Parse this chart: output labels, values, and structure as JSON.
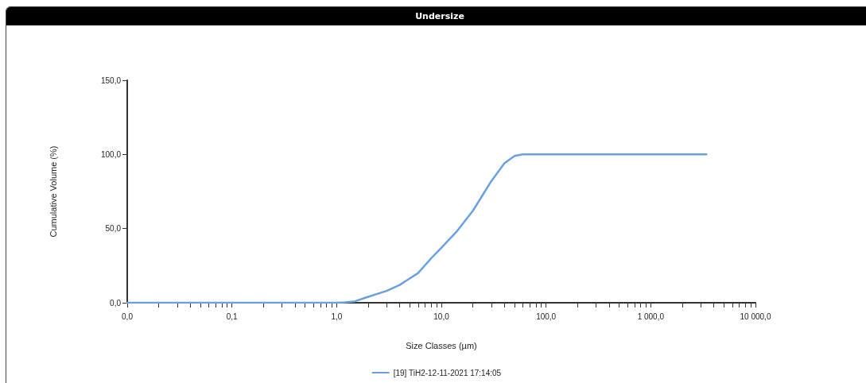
{
  "chart_data": {
    "type": "line",
    "title": "Undersize",
    "xlabel": "Size Classes (µm)",
    "ylabel": "Cumulative Volume (%)",
    "log": "x",
    "xlim": [
      0.01,
      10000
    ],
    "xticks": [
      {
        "value": 0.01,
        "label": "0,0"
      },
      {
        "value": 0.1,
        "label": "0,1"
      },
      {
        "value": 1,
        "label": "1,0"
      },
      {
        "value": 10,
        "label": "10,0"
      },
      {
        "value": 100,
        "label": "100,0"
      },
      {
        "value": 1000,
        "label": "1 000,0"
      },
      {
        "value": 10000,
        "label": "10 000,0"
      }
    ],
    "ylim": [
      0,
      150
    ],
    "yticks": [
      {
        "value": 0,
        "label": "0,0"
      },
      {
        "value": 50,
        "label": "50,0"
      },
      {
        "value": 100,
        "label": "100,0"
      },
      {
        "value": 150,
        "label": "150,0"
      }
    ],
    "grid": false,
    "legend": "bottom",
    "marker": "none",
    "line_style": "solid",
    "series": [
      {
        "name": "[19] TiH2-12-11-2021 17:14:05",
        "color": "#6a9fe0",
        "x": [
          0.01,
          1,
          1.2,
          1.5,
          2,
          3,
          4,
          6,
          8,
          10,
          14,
          20,
          25,
          30,
          40,
          50,
          60,
          3400
        ],
        "values": [
          0,
          0,
          0.3,
          1,
          4,
          8,
          12,
          20,
          30,
          37,
          48,
          62,
          73,
          82,
          94,
          99,
          100,
          100
        ]
      }
    ]
  }
}
